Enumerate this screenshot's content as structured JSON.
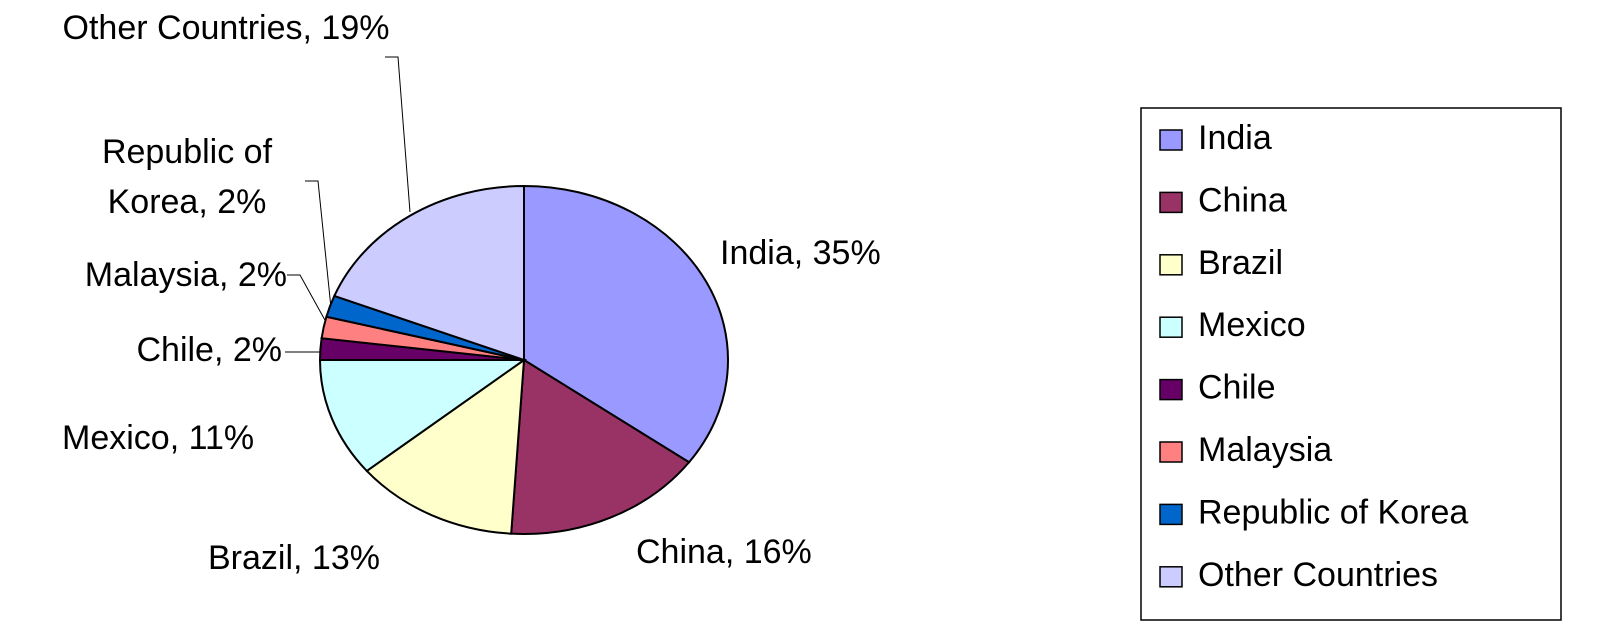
{
  "chart_data": {
    "type": "pie",
    "categories": [
      "India",
      "China",
      "Brazil",
      "Mexico",
      "Chile",
      "Malaysia",
      "Republic of Korea",
      "Other Countries"
    ],
    "values": [
      35,
      16,
      13,
      11,
      2,
      2,
      2,
      19
    ],
    "value_labels": [
      "India, 35%",
      "China, 16%",
      "Brazil, 13%",
      "Mexico, 11%",
      "Chile, 2%",
      "Malaysia, 2%",
      "Republic of Korea, 2%",
      "Other Countries, 19%"
    ],
    "colors": [
      "#9999ff",
      "#993366",
      "#ffffcc",
      "#ccffff",
      "#660066",
      "#ff8080",
      "#0066cc",
      "#ccccff"
    ],
    "legend": "right"
  }
}
